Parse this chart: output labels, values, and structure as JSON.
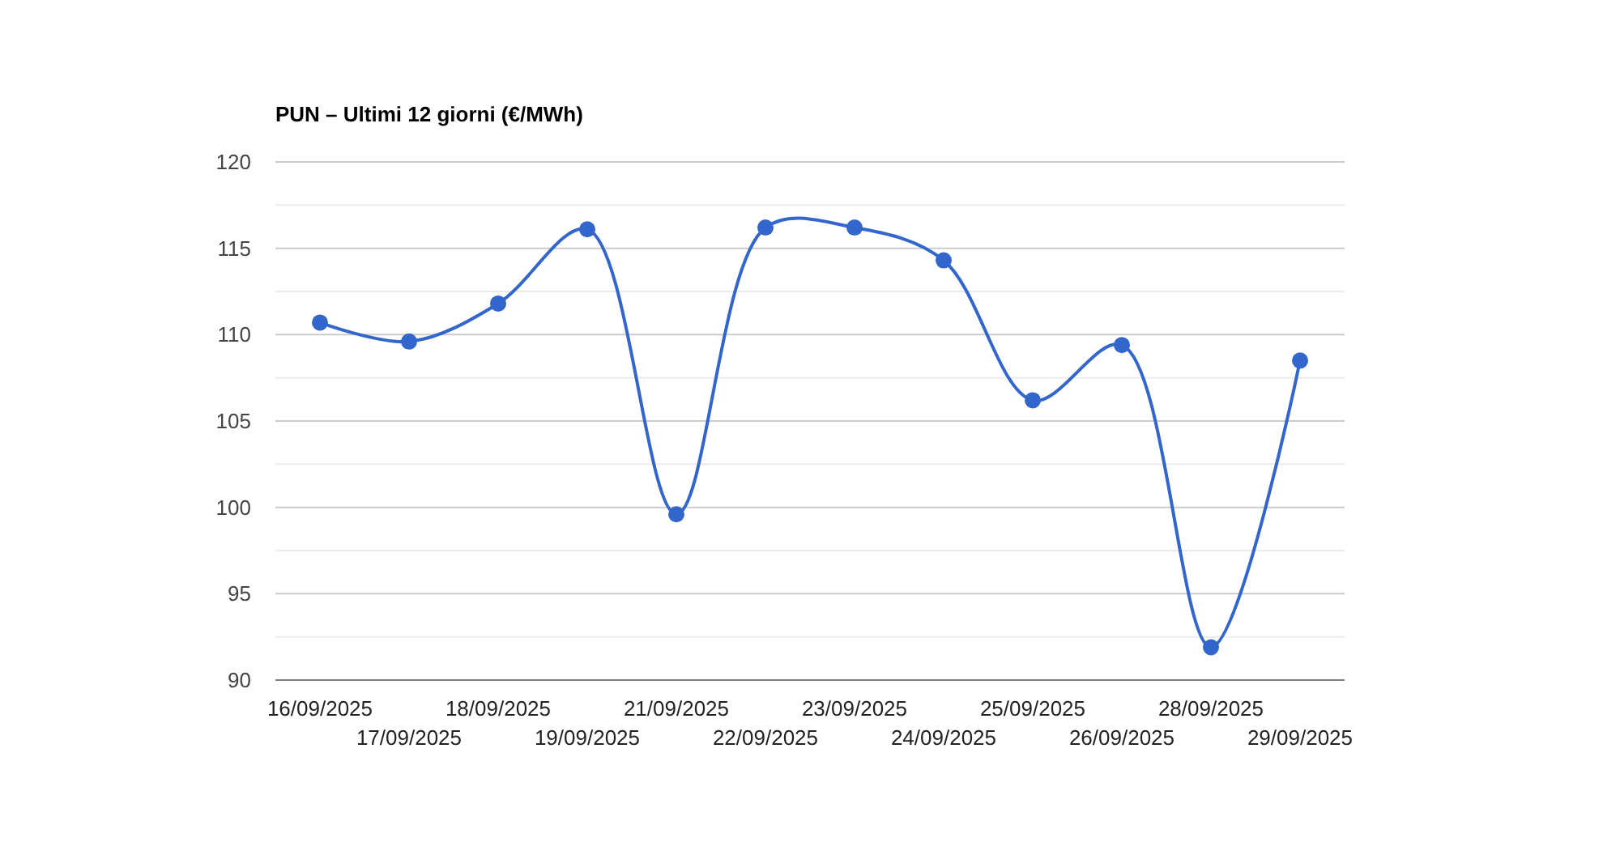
{
  "chart_data": {
    "type": "line",
    "title": "PUN – Ultimi 12 giorni (€/MWh)",
    "categories": [
      "16/09/2025",
      "17/09/2025",
      "18/09/2025",
      "19/09/2025",
      "21/09/2025",
      "22/09/2025",
      "23/09/2025",
      "24/09/2025",
      "25/09/2025",
      "26/09/2025",
      "28/09/2025",
      "29/09/2025"
    ],
    "series": [
      {
        "color": "#3366cc",
        "values": [
          110.7,
          109.6,
          111.8,
          116.1,
          99.6,
          116.2,
          116.2,
          114.3,
          106.2,
          109.4,
          91.9,
          108.5
        ]
      }
    ],
    "ylim": [
      90,
      120
    ],
    "yticks": [
      90,
      {
        "value": 92.5,
        "label": null
      },
      95,
      {
        "value": 97.5,
        "label": null
      },
      100,
      {
        "value": 102.5,
        "label": null
      },
      105,
      {
        "value": 107.5,
        "label": null
      },
      110,
      {
        "value": 112.5,
        "label": null
      },
      115,
      {
        "value": 117.5,
        "label": null
      },
      120
    ],
    "grid": "y",
    "marker": "circle",
    "line_style": "solid"
  }
}
